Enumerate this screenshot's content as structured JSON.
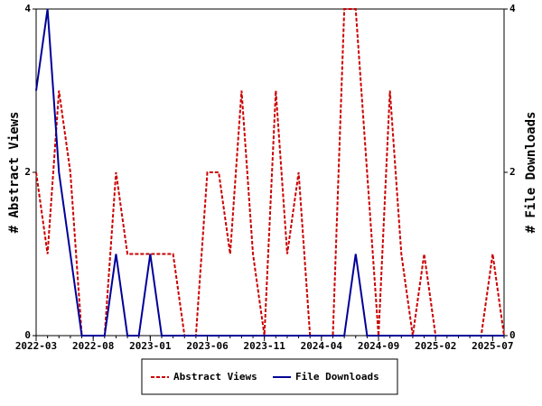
{
  "chart_data": {
    "type": "line",
    "x": [
      "2022-03",
      "2022-04",
      "2022-05",
      "2022-06",
      "2022-07",
      "2022-08",
      "2022-09",
      "2022-10",
      "2022-11",
      "2022-12",
      "2023-01",
      "2023-02",
      "2023-03",
      "2023-04",
      "2023-05",
      "2023-06",
      "2023-07",
      "2023-08",
      "2023-09",
      "2023-10",
      "2023-11",
      "2023-12",
      "2024-01",
      "2024-02",
      "2024-03",
      "2024-04",
      "2024-05",
      "2024-06",
      "2024-07",
      "2024-08",
      "2024-09",
      "2024-10",
      "2024-11",
      "2024-12",
      "2025-01",
      "2025-02",
      "2025-03",
      "2025-04",
      "2025-05",
      "2025-06",
      "2025-07",
      "2025-08"
    ],
    "xticks": [
      "2022-03",
      "2022-08",
      "2023-01",
      "2023-06",
      "2023-11",
      "2024-04",
      "2024-09",
      "2025-02",
      "2025-07"
    ],
    "ylabel": "# Abstract Views",
    "y2label": "# File Downloads",
    "ylim": [
      0,
      4
    ],
    "yticks": [
      0,
      2,
      4
    ],
    "y2lim": [
      0,
      4
    ],
    "y2ticks": [
      0,
      2,
      4
    ],
    "series": [
      {
        "name": "Abstract Views",
        "color": "#cc0000",
        "dash": true,
        "values": [
          2,
          1,
          3,
          2,
          0,
          0,
          0,
          2,
          1,
          1,
          1,
          1,
          1,
          0,
          0,
          2,
          2,
          1,
          3,
          1,
          0,
          3,
          1,
          2,
          0,
          0,
          0,
          4,
          4,
          2,
          0,
          3,
          1,
          0,
          1,
          0,
          0,
          0,
          0,
          0,
          1,
          0
        ]
      },
      {
        "name": "File Downloads",
        "color": "#000099",
        "dash": false,
        "axis": "y2",
        "values": [
          3,
          4,
          2,
          1,
          0,
          0,
          0,
          1,
          0,
          0,
          1,
          0,
          0,
          0,
          0,
          0,
          0,
          0,
          0,
          0,
          0,
          0,
          0,
          0,
          0,
          0,
          0,
          0,
          1,
          0,
          0,
          0,
          0,
          0,
          0,
          0,
          0,
          0,
          0,
          0,
          0,
          0
        ]
      }
    ],
    "legend": "bottom"
  }
}
